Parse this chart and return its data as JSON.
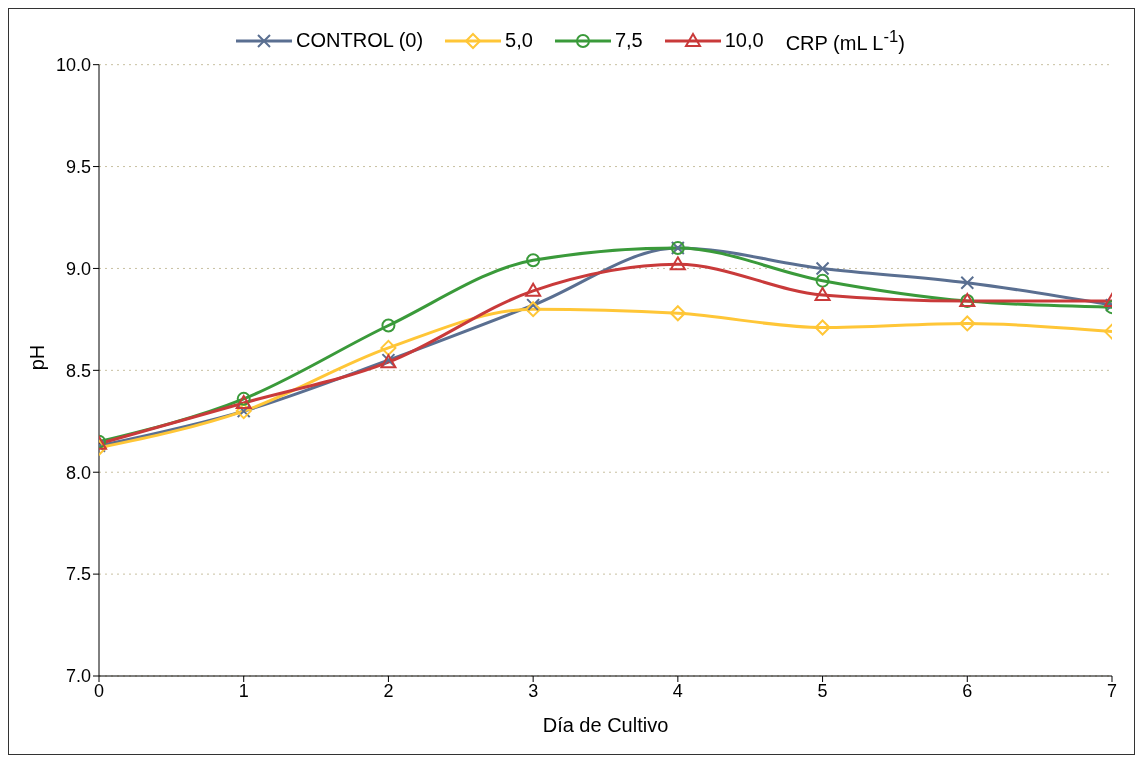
{
  "chart_data": {
    "type": "line",
    "xlabel": "Día de Cultivo",
    "ylabel": "pH",
    "legend_title": "CRP (mL L$^{-1}$)",
    "x": [
      0,
      1,
      2,
      3,
      4,
      5,
      6,
      7
    ],
    "series": [
      {
        "name": "CONTROL (0)",
        "color": "#5a6f91",
        "marker": "cross",
        "values": [
          8.13,
          8.3,
          8.55,
          8.82,
          9.1,
          9.0,
          8.93,
          8.82
        ]
      },
      {
        "name": "5,0",
        "color": "#ffc637",
        "marker": "diamond",
        "values": [
          8.12,
          8.3,
          8.61,
          8.8,
          8.78,
          8.71,
          8.73,
          8.69
        ]
      },
      {
        "name": "7,5",
        "color": "#3a9a3a",
        "marker": "circle",
        "values": [
          8.15,
          8.36,
          8.72,
          9.04,
          9.1,
          8.94,
          8.84,
          8.81
        ]
      },
      {
        "name": "10,0",
        "color": "#c93a3a",
        "marker": "triangle",
        "values": [
          8.14,
          8.34,
          8.54,
          8.89,
          9.02,
          8.87,
          8.84,
          8.84
        ]
      }
    ],
    "xlim": [
      0,
      7
    ],
    "xticks": [
      0,
      1,
      2,
      3,
      4,
      5,
      6,
      7
    ],
    "ylim": [
      7.0,
      10.0
    ],
    "yticks": [
      {
        "value": 7,
        "label": "7.0"
      },
      {
        "value": 7.5,
        "label": "7.5"
      },
      {
        "value": 8,
        "label": "8.0"
      },
      {
        "value": 8.5,
        "label": "8.5"
      },
      {
        "value": 9,
        "label": "9.0"
      },
      {
        "value": 9.5,
        "label": "9.5"
      },
      {
        "value": 10,
        "label": "10.0"
      }
    ],
    "grid": "y",
    "legend": "top",
    "line_style": "solid"
  }
}
